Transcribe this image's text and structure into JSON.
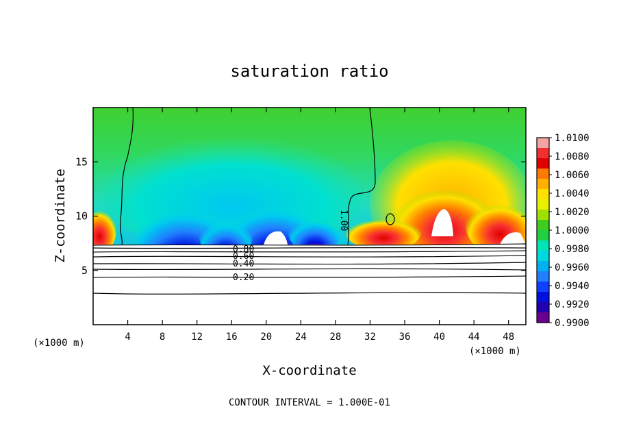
{
  "chart_data": {
    "type": "heatmap",
    "title": "saturation ratio",
    "xlabel": "X-coordinate",
    "ylabel": "Z-coordinate",
    "x_unit_label": "(×1000 m)",
    "x_unit_label_right": "(×1000 m)",
    "xlim": [
      0,
      50
    ],
    "ylim": [
      0,
      20
    ],
    "x_ticks": [
      "4",
      "8",
      "12",
      "16",
      "20",
      "24",
      "28",
      "32",
      "36",
      "40",
      "44",
      "48"
    ],
    "y_ticks": [
      "5",
      "10",
      "15"
    ],
    "footer": "CONTOUR INTERVAL = 1.000E-01",
    "contour_labels": [
      "0.80",
      "0.60",
      "0.40",
      "0.20",
      "1.00"
    ],
    "colorbar": {
      "labels": [
        "1.0100",
        "1.0080",
        "1.0060",
        "1.0040",
        "1.0020",
        "1.0000",
        "0.9980",
        "0.9960",
        "0.9940",
        "0.9920",
        "0.9900"
      ],
      "colors": [
        "#f4a3a3",
        "#f03030",
        "#e00000",
        "#ff7a00",
        "#ffb000",
        "#ffe000",
        "#e8f000",
        "#a0e000",
        "#40cc20",
        "#20d040",
        "#00e6b4",
        "#00d8e0",
        "#00b0f0",
        "#2080ff",
        "#1040ff",
        "#0010e0",
        "#2000b0",
        "#6a0090"
      ]
    }
  }
}
